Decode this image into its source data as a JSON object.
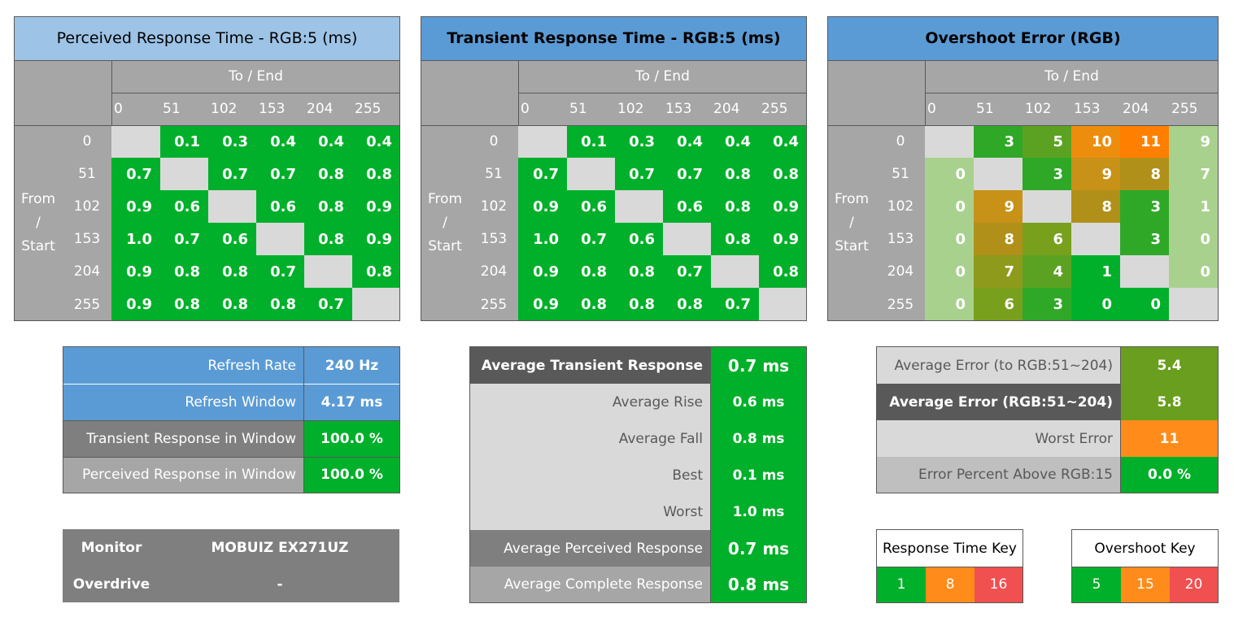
{
  "colors": {
    "green": "#00b02a",
    "gray_header": "#a6a6a6",
    "diagonal": "#d9d9d9",
    "blue_light": "#9dc3e6",
    "blue": "#5b9bd5",
    "orange": "#ff8c1a",
    "red": "#f05050"
  },
  "axis": {
    "to_end": "To / End",
    "from_start_1": "From",
    "from_start_2": "/",
    "from_start_3": "Start",
    "levels": [
      "0",
      "51",
      "102",
      "153",
      "204",
      "255"
    ]
  },
  "perceived": {
    "title": "Perceived Response Time - RGB:5 (ms)",
    "rows": [
      [
        "",
        "0.1",
        "0.3",
        "0.4",
        "0.4",
        "0.4"
      ],
      [
        "0.7",
        "",
        "0.7",
        "0.7",
        "0.8",
        "0.8"
      ],
      [
        "0.9",
        "0.6",
        "",
        "0.6",
        "0.8",
        "0.9"
      ],
      [
        "1.0",
        "0.7",
        "0.6",
        "",
        "0.8",
        "0.9"
      ],
      [
        "0.9",
        "0.8",
        "0.8",
        "0.7",
        "",
        "0.8"
      ],
      [
        "0.9",
        "0.8",
        "0.8",
        "0.8",
        "0.7",
        ""
      ]
    ]
  },
  "transient": {
    "title": "Transient Response Time - RGB:5 (ms)",
    "rows": [
      [
        "",
        "0.1",
        "0.3",
        "0.4",
        "0.4",
        "0.4"
      ],
      [
        "0.7",
        "",
        "0.7",
        "0.7",
        "0.8",
        "0.8"
      ],
      [
        "0.9",
        "0.6",
        "",
        "0.6",
        "0.8",
        "0.9"
      ],
      [
        "1.0",
        "0.7",
        "0.6",
        "",
        "0.8",
        "0.9"
      ],
      [
        "0.9",
        "0.8",
        "0.8",
        "0.7",
        "",
        "0.8"
      ],
      [
        "0.9",
        "0.8",
        "0.8",
        "0.8",
        "0.7",
        ""
      ]
    ]
  },
  "overshoot": {
    "title": "Overshoot Error (RGB)",
    "rows": [
      [
        "",
        "3",
        "5",
        "10",
        "11",
        "9"
      ],
      [
        "0",
        "",
        "3",
        "9",
        "8",
        "7"
      ],
      [
        "0",
        "9",
        "",
        "8",
        "3",
        "1"
      ],
      [
        "0",
        "8",
        "6",
        "",
        "3",
        "0"
      ],
      [
        "0",
        "7",
        "4",
        "1",
        "",
        "0"
      ],
      [
        "0",
        "6",
        "3",
        "0",
        "0",
        ""
      ]
    ],
    "cell_colors": [
      [
        "#d9d9d9",
        "#2fa828",
        "#5ca222",
        "#ed8d0e",
        "#ff8000",
        "#a9d18e"
      ],
      [
        "#a9d18e",
        "#d9d9d9",
        "#2fa828",
        "#c89118",
        "#b09019",
        "#a9d18e"
      ],
      [
        "#a9d18e",
        "#c89118",
        "#d9d9d9",
        "#b09019",
        "#2fa828",
        "#a9d18e"
      ],
      [
        "#a9d18e",
        "#b09019",
        "#78a01d",
        "#d9d9d9",
        "#2fa828",
        "#a9d18e"
      ],
      [
        "#a9d18e",
        "#8e9a1b",
        "#5ca222",
        "#00b02a",
        "#d9d9d9",
        "#a9d18e"
      ],
      [
        "#a9d18e",
        "#78a01d",
        "#2fa828",
        "#00b02a",
        "#00b02a",
        "#d9d9d9"
      ]
    ]
  },
  "refresh": {
    "rate_label": "Refresh Rate",
    "rate_value": "240 Hz",
    "window_label": "Refresh Window",
    "window_value": "4.17 ms",
    "transient_label": "Transient Response in Window",
    "transient_value": "100.0 %",
    "perceived_label": "Perceived Response in Window",
    "perceived_value": "100.0 %"
  },
  "monitor": {
    "monitor_label": "Monitor",
    "monitor_value": "MOBUIZ EX271UZ",
    "overdrive_label": "Overdrive",
    "overdrive_value": "-"
  },
  "averages": {
    "avg_transient_label": "Average Transient Response",
    "avg_transient_value": "0.7 ms",
    "avg_rise_label": "Average Rise",
    "avg_rise_value": "0.6 ms",
    "avg_fall_label": "Average Fall",
    "avg_fall_value": "0.8 ms",
    "best_label": "Best",
    "best_value": "0.1 ms",
    "worst_label": "Worst",
    "worst_value": "1.0 ms",
    "avg_perceived_label": "Average Perceived Response",
    "avg_perceived_value": "0.7 ms",
    "avg_complete_label": "Average Complete Response",
    "avg_complete_value": "0.8 ms"
  },
  "errors": {
    "avg_error_to_label": "Average Error (to RGB:51~204)",
    "avg_error_to_value": "5.4",
    "avg_error_label": "Average Error (RGB:51~204)",
    "avg_error_value": "5.8",
    "worst_error_label": "Worst Error",
    "worst_error_value": "11",
    "error_pct_label": "Error Percent Above RGB:15",
    "error_pct_value": "0.0 %"
  },
  "response_key": {
    "title": "Response Time Key",
    "values": [
      "1",
      "8",
      "16"
    ]
  },
  "overshoot_key": {
    "title": "Overshoot Key",
    "values": [
      "5",
      "15",
      "20"
    ]
  }
}
